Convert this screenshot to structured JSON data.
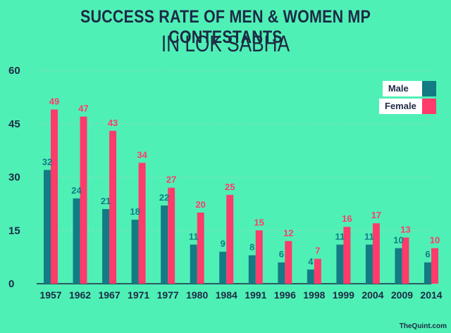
{
  "title_line1": "SUCCESS RATE OF MEN & WOMEN MP CONTESTANTS",
  "title_line2": "IN LOK SABHA",
  "watermark": "TheQuint.com",
  "colors": {
    "male": "#127B84",
    "female": "#FF3B6B",
    "axis_text": "#1d2a44",
    "grid": "#8fd9bc"
  },
  "legend": [
    {
      "name": "Male",
      "color": "#127B84"
    },
    {
      "name": "Female",
      "color": "#FF3B6B"
    }
  ],
  "chart_data": {
    "type": "bar",
    "title": "SUCCESS RATE OF MEN & WOMEN MP CONTESTANTS IN LOK SABHA",
    "categories": [
      "1957",
      "1962",
      "1967",
      "1971",
      "1977",
      "1980",
      "1984",
      "1991",
      "1996",
      "1998",
      "1999",
      "2004",
      "2009",
      "2014"
    ],
    "series": [
      {
        "name": "Male",
        "values": [
          32,
          24,
          21,
          18,
          22,
          11,
          9,
          8,
          6,
          4,
          11,
          11,
          10,
          6
        ]
      },
      {
        "name": "Female",
        "values": [
          49,
          47,
          43,
          34,
          27,
          20,
          25,
          15,
          12,
          7,
          16,
          17,
          13,
          10
        ]
      }
    ],
    "yticks": [
      0,
      15,
      30,
      45,
      60
    ],
    "ylim": [
      0,
      60
    ],
    "xlabel": "",
    "ylabel": "",
    "grid": true,
    "legend_position": "top-right"
  }
}
